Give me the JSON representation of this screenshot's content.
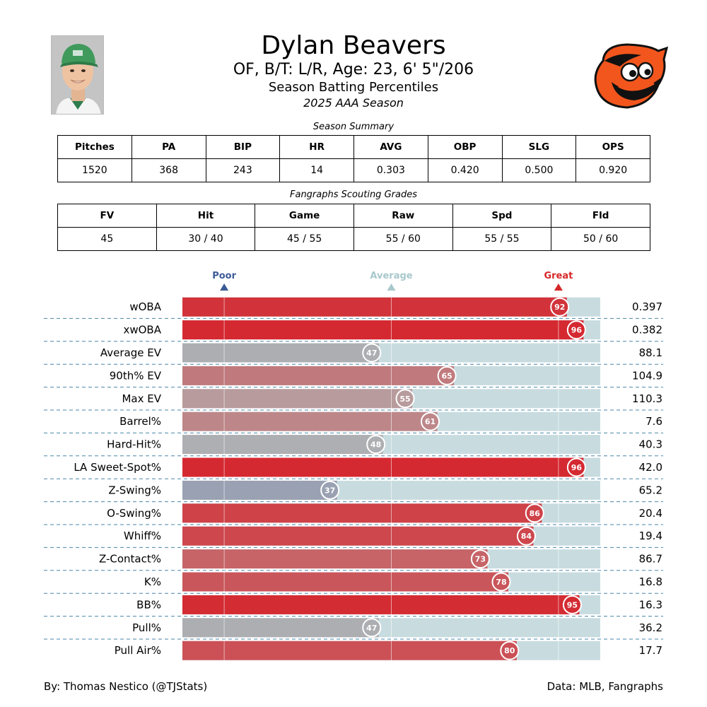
{
  "header": {
    "player_name": "Dylan Beavers",
    "player_info": "OF, B/T: L/R, Age: 23, 6' 5\"/206",
    "report_title": "Season Batting Percentiles",
    "season": "2025 AAA Season"
  },
  "team_logo": {
    "icon": "orioles-bird-logo",
    "colors": {
      "orange": "#f2561d",
      "black": "#111111",
      "white": "#ffffff"
    }
  },
  "headshot": {
    "icon": "player-headshot"
  },
  "season_summary": {
    "caption": "Season Summary",
    "columns": [
      "Pitches",
      "PA",
      "BIP",
      "HR",
      "AVG",
      "OBP",
      "SLG",
      "OPS"
    ],
    "values": [
      "1520",
      "368",
      "243",
      "14",
      "0.303",
      "0.420",
      "0.500",
      "0.920"
    ]
  },
  "scouting_grades": {
    "caption": "Fangraphs Scouting Grades",
    "columns": [
      "FV",
      "Hit",
      "Game",
      "Raw",
      "Spd",
      "Fld"
    ],
    "values": [
      "45",
      "30 / 40",
      "45 / 55",
      "55 / 60",
      "55 / 55",
      "50 / 60"
    ]
  },
  "chart_data": {
    "type": "bar",
    "orientation": "horizontal",
    "title": "",
    "xlim": [
      0,
      100
    ],
    "markers": [
      {
        "label": "Poor",
        "percentile": 10,
        "color": "#3d5a96"
      },
      {
        "label": "Average",
        "percentile": 50,
        "color": "#a8c8cc"
      },
      {
        "label": "Great",
        "percentile": 90,
        "color": "#d62728"
      }
    ],
    "categories": [
      "wOBA",
      "xwOBA",
      "Average EV",
      "90th% EV",
      "Max EV",
      "Barrel%",
      "Hard-Hit%",
      "LA Sweet-Spot%",
      "Z-Swing%",
      "O-Swing%",
      "Whiff%",
      "Z-Contact%",
      "K%",
      "BB%",
      "Pull%",
      "Pull Air%"
    ],
    "percentiles": [
      92,
      96,
      47,
      65,
      55,
      61,
      48,
      96,
      37,
      86,
      84,
      73,
      78,
      95,
      47,
      80
    ],
    "stat_values": [
      "0.397",
      "0.382",
      "88.1",
      "104.9",
      "110.3",
      "7.6",
      "40.3",
      "42.0",
      "65.2",
      "20.4",
      "19.4",
      "86.7",
      "16.8",
      "16.3",
      "36.2",
      "17.7"
    ],
    "grid": true,
    "colors": {
      "track": "#c8dce0",
      "row_separator": "#4a86a8"
    }
  },
  "footer": {
    "credit": "By: Thomas Nestico (@TJStats)",
    "source": "Data: MLB, Fangraphs"
  }
}
